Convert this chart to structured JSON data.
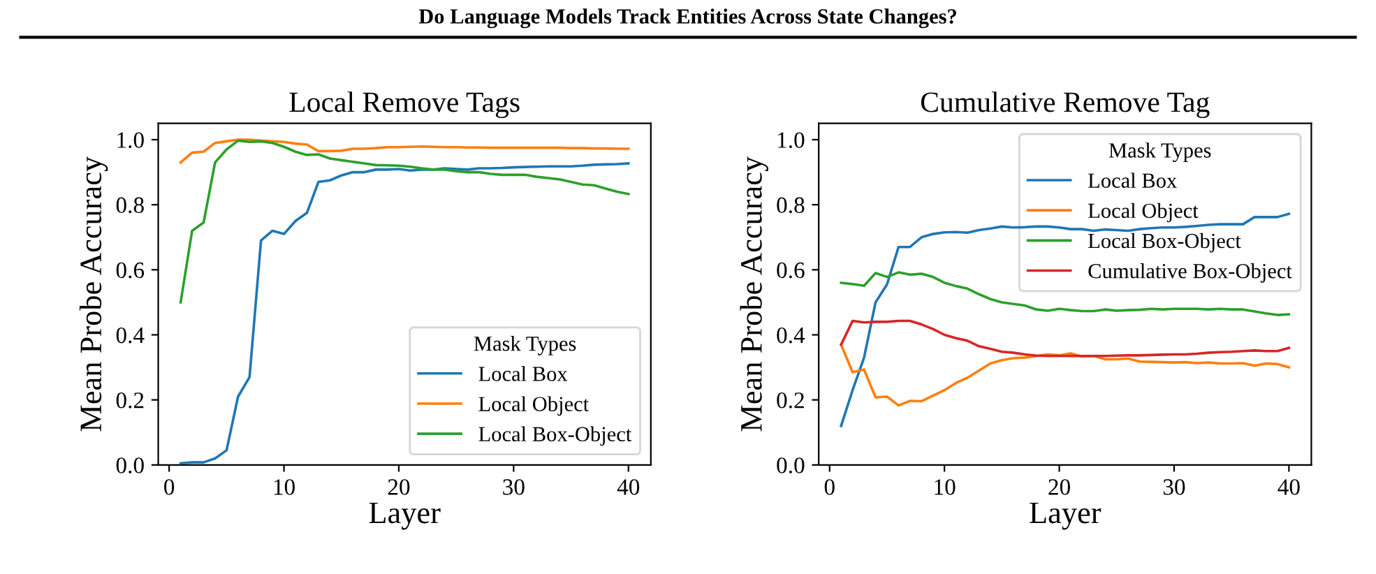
{
  "chart_data": [
    {
      "type": "line",
      "title": "Local Remove Tags",
      "xlabel": "Layer",
      "ylabel": "Mean Probe Accuracy",
      "legend_title": "Mask Types",
      "legend": "bottom right",
      "annotations": [
        "Do Language Models Track Entities Across State Changes?"
      ],
      "x": [
        1,
        2,
        3,
        4,
        5,
        6,
        7,
        8,
        9,
        10,
        11,
        12,
        13,
        14,
        15,
        16,
        17,
        18,
        19,
        20,
        21,
        22,
        23,
        24,
        25,
        26,
        27,
        28,
        29,
        30,
        31,
        32,
        33,
        34,
        35,
        36,
        37,
        38,
        39,
        40
      ],
      "xlim": [
        -0.95,
        41.95
      ],
      "xticks": [
        0,
        10,
        20,
        30,
        40
      ],
      "ylim": [
        0,
        1.05
      ],
      "yticks": [
        {
          "value": 0,
          "label": "0.0"
        },
        {
          "value": 0.2,
          "label": "0.2"
        },
        {
          "value": 0.4,
          "label": "0.4"
        },
        {
          "value": 0.6,
          "label": "0.6"
        },
        {
          "value": 0.8,
          "label": "0.8"
        },
        {
          "value": 1,
          "label": "1.0"
        }
      ],
      "series": [
        {
          "name": "Local Box",
          "color": "#1f77b4",
          "values": [
            0.005,
            0.008,
            0.008,
            0.02,
            0.045,
            0.21,
            0.27,
            0.69,
            0.72,
            0.71,
            0.75,
            0.775,
            0.87,
            0.875,
            0.89,
            0.9,
            0.9,
            0.908,
            0.908,
            0.91,
            0.905,
            0.908,
            0.908,
            0.912,
            0.91,
            0.908,
            0.912,
            0.912,
            0.913,
            0.915,
            0.916,
            0.917,
            0.918,
            0.918,
            0.918,
            0.92,
            0.923,
            0.924,
            0.925,
            0.927
          ]
        },
        {
          "name": "Local Object",
          "color": "#ff7f0e",
          "values": [
            0.93,
            0.96,
            0.963,
            0.99,
            0.995,
            1.0,
            1.0,
            0.997,
            0.995,
            0.993,
            0.988,
            0.985,
            0.965,
            0.965,
            0.966,
            0.972,
            0.972,
            0.974,
            0.977,
            0.977,
            0.978,
            0.979,
            0.978,
            0.977,
            0.977,
            0.976,
            0.976,
            0.975,
            0.975,
            0.975,
            0.975,
            0.975,
            0.975,
            0.975,
            0.974,
            0.974,
            0.973,
            0.973,
            0.972,
            0.972
          ]
        },
        {
          "name": "Local Box-Object",
          "color": "#2ca02c",
          "values": [
            0.5,
            0.72,
            0.745,
            0.93,
            0.97,
            0.997,
            0.993,
            0.995,
            0.99,
            0.978,
            0.963,
            0.953,
            0.955,
            0.942,
            0.937,
            0.932,
            0.927,
            0.922,
            0.921,
            0.92,
            0.917,
            0.912,
            0.908,
            0.908,
            0.903,
            0.9,
            0.9,
            0.895,
            0.892,
            0.892,
            0.892,
            0.886,
            0.882,
            0.878,
            0.87,
            0.862,
            0.86,
            0.85,
            0.84,
            0.833
          ]
        }
      ]
    },
    {
      "type": "line",
      "title": "Cumulative Remove Tag",
      "xlabel": "Layer",
      "ylabel": "Mean Probe Accuracy",
      "legend_title": "Mask Types",
      "legend": "top right",
      "x": [
        1,
        2,
        3,
        4,
        5,
        6,
        7,
        8,
        9,
        10,
        11,
        12,
        13,
        14,
        15,
        16,
        17,
        18,
        19,
        20,
        21,
        22,
        23,
        24,
        25,
        26,
        27,
        28,
        29,
        30,
        31,
        32,
        33,
        34,
        35,
        36,
        37,
        38,
        39,
        40
      ],
      "xlim": [
        -0.95,
        41.95
      ],
      "xticks": [
        0,
        10,
        20,
        30,
        40
      ],
      "ylim": [
        0,
        1.05
      ],
      "yticks": [
        {
          "value": 0,
          "label": "0.0"
        },
        {
          "value": 0.2,
          "label": "0.2"
        },
        {
          "value": 0.4,
          "label": "0.4"
        },
        {
          "value": 0.6,
          "label": "0.6"
        },
        {
          "value": 0.8,
          "label": "0.8"
        },
        {
          "value": 1,
          "label": "1.0"
        }
      ],
      "series": [
        {
          "name": "Local Box",
          "color": "#1f77b4",
          "values": [
            0.12,
            0.23,
            0.33,
            0.5,
            0.555,
            0.67,
            0.67,
            0.7,
            0.71,
            0.715,
            0.716,
            0.714,
            0.722,
            0.727,
            0.733,
            0.73,
            0.731,
            0.733,
            0.733,
            0.73,
            0.725,
            0.725,
            0.72,
            0.724,
            0.722,
            0.72,
            0.725,
            0.728,
            0.73,
            0.73,
            0.732,
            0.735,
            0.738,
            0.74,
            0.74,
            0.74,
            0.762,
            0.762,
            0.762,
            0.772
          ]
        },
        {
          "name": "Local Object",
          "color": "#ff7f0e",
          "values": [
            0.37,
            0.285,
            0.293,
            0.208,
            0.21,
            0.183,
            0.197,
            0.196,
            0.213,
            0.23,
            0.252,
            0.268,
            0.29,
            0.312,
            0.322,
            0.328,
            0.33,
            0.335,
            0.34,
            0.337,
            0.343,
            0.333,
            0.335,
            0.325,
            0.325,
            0.327,
            0.318,
            0.317,
            0.316,
            0.315,
            0.316,
            0.313,
            0.315,
            0.312,
            0.312,
            0.313,
            0.305,
            0.312,
            0.31,
            0.3
          ]
        },
        {
          "name": "Local Box-Object",
          "color": "#2ca02c",
          "values": [
            0.56,
            0.556,
            0.551,
            0.59,
            0.578,
            0.592,
            0.585,
            0.588,
            0.578,
            0.56,
            0.55,
            0.542,
            0.525,
            0.51,
            0.5,
            0.495,
            0.49,
            0.478,
            0.474,
            0.48,
            0.476,
            0.473,
            0.473,
            0.478,
            0.474,
            0.476,
            0.477,
            0.48,
            0.478,
            0.48,
            0.48,
            0.48,
            0.478,
            0.48,
            0.478,
            0.478,
            0.472,
            0.466,
            0.461,
            0.463
          ]
        },
        {
          "name": "Cumulative Box-Object",
          "color": "#d62728",
          "values": [
            0.37,
            0.443,
            0.438,
            0.44,
            0.44,
            0.443,
            0.443,
            0.432,
            0.418,
            0.4,
            0.39,
            0.382,
            0.365,
            0.357,
            0.348,
            0.345,
            0.34,
            0.336,
            0.335,
            0.335,
            0.335,
            0.335,
            0.335,
            0.335,
            0.336,
            0.337,
            0.337,
            0.338,
            0.339,
            0.34,
            0.34,
            0.342,
            0.345,
            0.347,
            0.348,
            0.35,
            0.352,
            0.35,
            0.35,
            0.36
          ]
        }
      ]
    }
  ]
}
